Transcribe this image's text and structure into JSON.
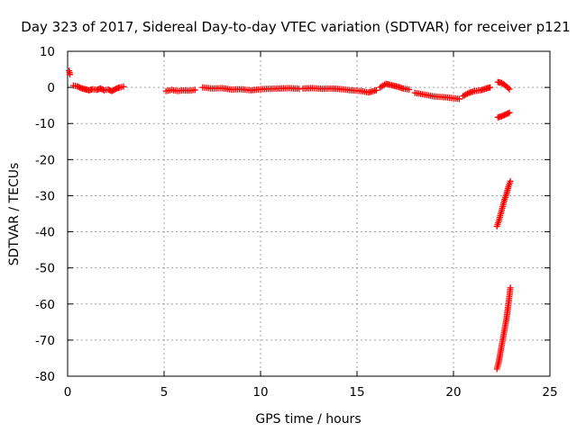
{
  "chart_data": {
    "type": "scatter",
    "title": "Day 323 of 2017, Sidereal Day-to-day VTEC variation (SDTVAR) for receiver p121",
    "xlabel": "GPS time / hours",
    "ylabel": "SDTVAR / TECUs",
    "xlim": [
      0,
      25
    ],
    "ylim": [
      -80,
      10
    ],
    "xticks": [
      0,
      5,
      10,
      15,
      20,
      25
    ],
    "xtick_labels": [
      "0",
      "5",
      "10",
      "15",
      "20",
      "25"
    ],
    "yticks": [
      10,
      0,
      -10,
      -20,
      -30,
      -40,
      -50,
      -60,
      -70,
      -80
    ],
    "ytick_labels": [
      "10",
      "0",
      "-10",
      "-20",
      "-30",
      "-40",
      "-50",
      "-60",
      "-70",
      "-80"
    ],
    "grid": true,
    "marker": "+",
    "series": [
      {
        "name": "SDTVAR",
        "color": "#ff0000",
        "segments": [
          {
            "x": [
              0.08,
              0.12
            ],
            "y": [
              4.6,
              3.6
            ]
          },
          {
            "x": [
              0.3,
              0.5,
              0.7,
              0.9,
              1.1,
              1.3,
              1.5,
              1.7,
              1.9,
              2.1,
              2.3,
              2.5,
              2.7,
              2.9
            ],
            "y": [
              0.5,
              0.3,
              -0.2,
              -0.5,
              -0.8,
              -0.5,
              -0.7,
              -0.3,
              -0.8,
              -0.6,
              -1.0,
              -0.4,
              0.0,
              0.2
            ]
          },
          {
            "x": [
              5.1,
              5.4,
              5.7,
              6.0,
              6.3,
              6.6
            ],
            "y": [
              -1.0,
              -0.7,
              -1.0,
              -0.8,
              -0.9,
              -0.7
            ]
          },
          {
            "x": [
              7.0,
              7.5,
              8.0,
              8.5,
              9.0,
              9.5,
              10.0,
              10.5,
              11.0,
              11.5,
              12.0
            ],
            "y": [
              0.0,
              -0.3,
              -0.2,
              -0.6,
              -0.5,
              -0.8,
              -0.5,
              -0.4,
              -0.3,
              -0.2,
              -0.4
            ]
          },
          {
            "x": [
              12.2,
              12.7,
              13.2,
              13.7,
              14.2,
              14.7,
              15.2,
              15.6,
              16.0
            ],
            "y": [
              -0.3,
              -0.2,
              -0.4,
              -0.3,
              -0.5,
              -0.8,
              -1.0,
              -1.4,
              -0.8
            ]
          },
          {
            "x": [
              16.2,
              16.5,
              16.8,
              17.1,
              17.4,
              17.7
            ],
            "y": [
              0.0,
              1.0,
              0.6,
              0.2,
              -0.3,
              -0.6
            ]
          },
          {
            "x": [
              18.0,
              18.5,
              19.0,
              19.5,
              20.0,
              20.3
            ],
            "y": [
              -1.5,
              -2.0,
              -2.5,
              -2.7,
              -3.0,
              -3.2
            ]
          },
          {
            "x": [
              20.5,
              20.8,
              21.1,
              21.4,
              21.7,
              21.9
            ],
            "y": [
              -2.4,
              -1.5,
              -1.0,
              -0.8,
              -0.3,
              0.0
            ]
          },
          {
            "x": [
              22.3,
              22.5,
              22.7,
              22.9
            ],
            "y": [
              1.5,
              1.2,
              0.5,
              -0.5
            ]
          },
          {
            "x": [
              22.3,
              22.5,
              22.7,
              22.9
            ],
            "y": [
              -8.3,
              -8.0,
              -7.5,
              -7.0
            ]
          },
          {
            "x": [
              22.25,
              22.35,
              22.45,
              22.55,
              22.65,
              22.75,
              22.85,
              22.95
            ],
            "y": [
              -38.5,
              -37.0,
              -35.0,
              -33.0,
              -31.0,
              -29.5,
              -27.5,
              -26.0
            ]
          },
          {
            "x": [
              22.25,
              22.35,
              22.45,
              22.55,
              22.65,
              22.75,
              22.85,
              22.95
            ],
            "y": [
              -78.0,
              -76.0,
              -73.0,
              -70.0,
              -67.0,
              -64.0,
              -60.0,
              -55.5
            ]
          }
        ]
      }
    ]
  }
}
